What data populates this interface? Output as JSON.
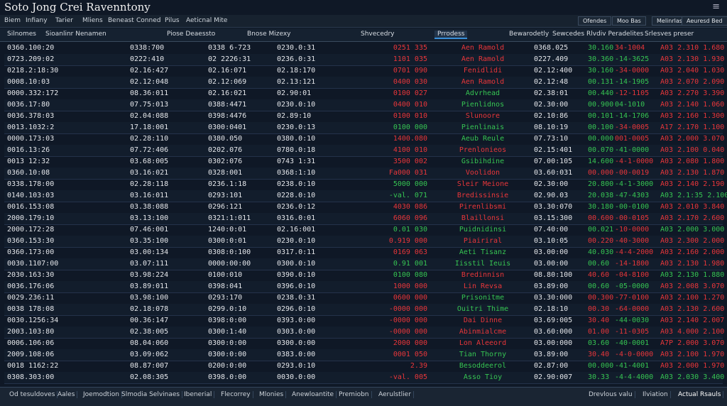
{
  "header": {
    "title": "Soto Jong Crei Ravenntony"
  },
  "menu": [
    "Biem",
    "Infiany",
    "Tarier",
    "Mliens",
    "Beneast",
    "Conned",
    "Pilus",
    "Aeticnal Mite"
  ],
  "toolbar": [
    "Ofendes",
    "Moo Bas",
    "Melinrlas",
    "Aeuresd Bed"
  ],
  "columns": [
    "Silnomes",
    "Sioanlinr Nenamen",
    "Piose Deaessto",
    "Bnose Mizexy",
    "Shvecedry",
    "Prrodess",
    "Bewarodetly",
    "Sewcedes",
    "Rlvdiv Peradelites",
    "Srlesves preser"
  ],
  "palette": {
    "r": "#e8363a",
    "g": "#36c452"
  },
  "table": {
    "rows": [
      {
        "cells": [
          "0360.100:20",
          "0338:700",
          "0338 6-723",
          "0230.0:31",
          "0251 335",
          "Aen Ramold",
          "0368.025",
          "30.160",
          "34-1004",
          "A03 2.310 1.680"
        ],
        "tone": "rrgrr"
      },
      {
        "cells": [
          "0723.209:02",
          "0222:410",
          "02 2226:31",
          "0236.0:31",
          "1101 035",
          "Aen Ramold",
          "0227.409",
          "30.360",
          "-14-3625",
          "A03 2.130 1.930"
        ],
        "tone": "rrggr"
      },
      {
        "cells": [
          "0218.2:18:30",
          "02.16:427",
          "02.16:071",
          "02.18:170",
          "0701 090",
          "Fenidlidi",
          "02.12:400",
          "30.160",
          "-34-0000",
          "A03 2.040 1.030"
        ],
        "tone": "rrgrr"
      },
      {
        "cells": [
          "0008.10:03",
          "02.12:048",
          "02.12:069",
          "02.13:121",
          "0400 030",
          "Aen Ramold",
          "02.12:48",
          "00.131",
          "-14-1905",
          "A03 2.070 2.090"
        ],
        "tone": "rrggr"
      },
      {
        "cells": [
          "0000.332:172",
          "08.36:011",
          "02.16:021",
          "02.90:01",
          "0100 027",
          "Advrhead",
          "02.38:01",
          "00.440",
          "-12-1105",
          "A03 2.270 3.390"
        ],
        "tone": "rggrr"
      },
      {
        "cells": [
          "0036.17:80",
          "07.75:013",
          "0388:4471",
          "0230.0:10",
          "0400 010",
          "Pienlidnos",
          "02.30:00",
          "00.900",
          "04-1010",
          "A03 2.140 1.060"
        ],
        "tone": "rgggr"
      },
      {
        "cells": [
          "0036.378:03",
          "02.04:088",
          "0398:4476",
          "02.89:10",
          "0100 010",
          "Slunoore",
          "02.10:86",
          "00.101",
          "-14-1706",
          "A03 2.160 1.300"
        ],
        "tone": "rrggr"
      },
      {
        "cells": [
          "0013.1032:2",
          "17.18:001",
          "0300:0401",
          "0230.0:13",
          "0100 000",
          "Pienlinais",
          "08.10:19",
          "00.100",
          "-34-0005",
          "A17 2.170 1.100"
        ],
        "tone": "gggrr"
      },
      {
        "cells": [
          "0000.173:03",
          "02.28:110",
          "0380.050",
          "0380.0:10",
          "1400.080",
          "Aeub Reule",
          "07.73:10",
          "00.000",
          "001-0005",
          "A03 2.000 3.070"
        ],
        "tone": "rggrr"
      },
      {
        "cells": [
          "0016.13:26",
          "07.72:406",
          "0202.076",
          "0780.0:18",
          "4100 010",
          "Prenlonieos",
          "02.15:401",
          "00.070",
          "-41-0000",
          "A03 2.100 0.040"
        ],
        "tone": "rrggr"
      },
      {
        "cells": [
          "0013 12:32",
          "03.68:005",
          "0302:076",
          "0743 1:31",
          "3500 002",
          "Gsibihdine",
          "07.00:105",
          "14.600",
          "-4-1-0000",
          "A03 2.080 1.800"
        ],
        "tone": "rggrr"
      },
      {
        "cells": [
          "0360.10:08",
          "03.16:021",
          "0328:001",
          "0368:1:10",
          "Fa000 031",
          "Voolidon",
          "03.60:031",
          "00.000",
          "-00-0019",
          "A03 2.130 1.870"
        ],
        "tone": "rrrrr"
      },
      {
        "cells": [
          "0338.178:00",
          "02.28:118",
          "0236.1:18",
          "0238.0:10",
          "5000 000",
          "Sleir Meione",
          "02.30:00",
          "20.800",
          "-4-1-3000",
          "A03 2.140 2.190"
        ],
        "tone": "grggr"
      },
      {
        "cells": [
          "0140.103:03",
          "03.16:011",
          "0293:101",
          "0228.0:10",
          "-val. 071",
          "Bredissinsie",
          "02.90.03",
          "20.038",
          "-47-4303",
          "A03 2.1:35 2.100"
        ],
        "tone": "grggg"
      },
      {
        "cells": [
          "0016.153:08",
          "03.38:088",
          "0296:121",
          "0236.0:12",
          "4030 086",
          "Pirenlibsmi",
          "03.30:070",
          "30.180",
          "-00-0100",
          "A03 2.010 3.840"
        ],
        "tone": "rrggr"
      },
      {
        "cells": [
          "2000.179:10",
          "03.13:100",
          "0321:1:011",
          "0316.0:01",
          "6060 096",
          "Blaillonsi",
          "03.15:300",
          "00.600",
          "-00-0105",
          "A03 2.170 2.600"
        ],
        "tone": "rrrrr"
      },
      {
        "cells": [
          "2000.172:28",
          "07.46:001",
          "1240:0:01",
          "02.16:001",
          "0.01 030",
          "Puidnidinsi",
          "07.40:00",
          "00.021",
          "-10-0000",
          "A03 2.000 3.000"
        ],
        "tone": "gggrg"
      },
      {
        "cells": [
          "0360.153:30",
          "03.35:100",
          "0300:0:01",
          "0230.0:10",
          "0.919 000",
          "Piairiral",
          "03.10:05",
          "00.220",
          "-40-3000",
          "A03 2.300 2.000"
        ],
        "tone": "rrrrr"
      },
      {
        "cells": [
          "0360.173:00",
          "03.00:134",
          "0308:0:100",
          "0317.0:11",
          "0169 063",
          "Aeti Tisanz",
          "03.00:00",
          "40.030",
          "-4-4-2000",
          "A03 2.160 2.000"
        ],
        "tone": "rggrr"
      },
      {
        "cells": [
          "0030.1107:00",
          "03.07:111",
          "0000:00:00",
          "0300.0:10",
          "0.91 001",
          "Iisstil Ieuis",
          "03.00:00",
          "00.60",
          "-14-1800",
          "A03 2.130 1.980"
        ],
        "tone": "gggrr"
      },
      {
        "cells": [
          "2030.163:30",
          "03.98:224",
          "0100:010",
          "0390.0:10",
          "0100 080",
          "Bredinnisn",
          "08.80:100",
          "40.60",
          "-04-8100",
          "A03 2.130 1.880"
        ],
        "tone": "grrrg"
      },
      {
        "cells": [
          "0036.176:06",
          "03.89:011",
          "0398:041",
          "0396.0:10",
          "1000 000",
          "Lin Revsa",
          "03.89:00",
          "00.60",
          "-05-0000",
          "A03 2.008 3.070"
        ],
        "tone": "rrggr"
      },
      {
        "cells": [
          "0029.236:11",
          "03.98:100",
          "0293:170",
          "0238.0:31",
          "0600 000",
          "Prisonitme",
          "03.30:000",
          "00.300",
          "-77-0100",
          "A03 2.100 1.270"
        ],
        "tone": "rgrrr"
      },
      {
        "cells": [
          "0038 178:08",
          "02.18:078",
          "0299.0:10",
          "0296.0:10",
          "-0000 000",
          "Ouitri Thime",
          "02.18:10",
          "00.30",
          "-64-0000",
          "A03 2.130 2.600"
        ],
        "tone": "rgrrr"
      },
      {
        "cells": [
          "0030.1256:34",
          "00.36:147",
          "0398:0:00",
          "0393.0:00",
          "-0000 000",
          "Dai Dinne",
          "03.69:005",
          "30.40",
          "-44-0030",
          "A03 2.140 2.007"
        ],
        "tone": "rrrgr"
      },
      {
        "cells": [
          "2003.103:80",
          "02.38:005",
          "0300:1:40",
          "0303.0:00",
          "-0000 000",
          "Abinmialcme",
          "03.60:000",
          "01.00",
          "-11-0305",
          "A03 4.000 2.100"
        ],
        "tone": "rrrrr"
      },
      {
        "cells": [
          "0006.106:06",
          "08.04:060",
          "0300:0:00",
          "0300.0:00",
          "2000 000",
          "Lon Aleeord",
          "03.00:000",
          "03.60",
          "-40-0001",
          "A7P 2.000 3.070"
        ],
        "tone": "rrggr"
      },
      {
        "cells": [
          "2009.108:06",
          "03.09:062",
          "0300:0:00",
          "0383.0:00",
          "0001 050",
          "Tian Thorny",
          "03.89:00",
          "30.40",
          "-4-0-0000",
          "A03 2.100 1.970"
        ],
        "tone": "rgrrr"
      },
      {
        "cells": [
          "0018 1162:22",
          "08.87:007",
          "0200:0:00",
          "0293.0:10",
          "2.39",
          "Besoddeerol",
          "02.87:00",
          "00.000",
          "-41-4001",
          "A03 2.000 1.970"
        ],
        "tone": "rgggr"
      },
      {
        "cells": [
          "0308.303:00",
          "02.08:305",
          "0398.0:00",
          "0030.0:00",
          "-val. 005",
          "Asso Tioy",
          "02.90:007",
          "30.33",
          "-4-4-4000",
          "A03 2.030 3.400"
        ],
        "tone": "rgggg"
      }
    ]
  },
  "footer": {
    "tabs": [
      "Od tesuldoves",
      "Aales",
      "Joemodtion",
      "Slmodia Selvinaes",
      "Ibenerial",
      "Flecorrey",
      "Mlonies",
      "Anewloantite",
      "Premiobn",
      "Aerulstlier"
    ],
    "right": [
      "Drevlous valu",
      "Ilviation",
      "Actual Rsauls"
    ]
  }
}
